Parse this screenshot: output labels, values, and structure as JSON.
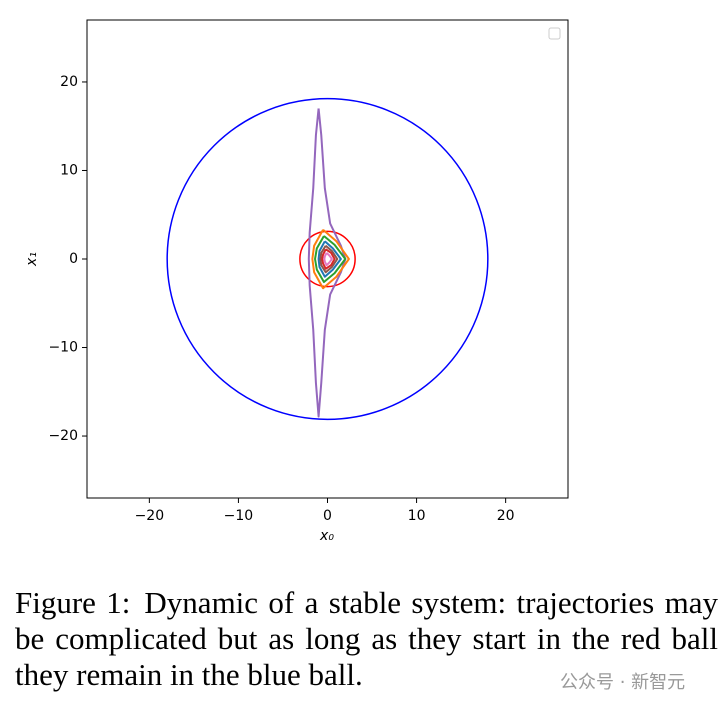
{
  "chart_data": {
    "type": "line",
    "x_label": "x₀",
    "y_label": "x₁",
    "xlim": [
      -27,
      27
    ],
    "ylim": [
      -27,
      27
    ],
    "xticks": [
      {
        "value": -20,
        "label": "−20"
      },
      {
        "value": -10,
        "label": "−10"
      },
      0,
      10,
      20
    ],
    "yticks": [
      {
        "value": -20,
        "label": "−20"
      },
      {
        "value": -10,
        "label": "−10"
      },
      0,
      10,
      20
    ],
    "legend": "upper right",
    "balls": [
      {
        "color": "#0000ff",
        "cx": 0,
        "cy": 0,
        "r": 18
      },
      {
        "color": "#ff0000",
        "cx": 0,
        "cy": 0,
        "r": 3.1
      }
    ],
    "series": [
      {
        "color": "#9467bd",
        "x": [
          -1,
          -0.7,
          -0.3,
          0.3,
          1.5,
          2,
          1.5,
          0.3,
          -0.3,
          -0.7,
          -1,
          -1.3,
          -1.6,
          -2,
          -2.1,
          -2,
          -1.6,
          -1.3,
          -1
        ],
        "y": [
          17,
          14,
          8,
          4,
          1.5,
          0,
          -1.5,
          -4,
          -8,
          -14,
          -17.8,
          -14,
          -8,
          -3,
          0,
          3,
          8,
          14,
          17
        ]
      },
      {
        "color": "#ff7f0e",
        "x": [
          -0.5,
          1,
          2.4,
          1,
          -0.5,
          -1.5,
          -1.7,
          -1.5,
          -0.5
        ],
        "y": [
          3.3,
          2,
          0,
          -2,
          -3.3,
          -1.5,
          0,
          1.5,
          3.3
        ]
      },
      {
        "color": "#2ca02c",
        "x": [
          -0.4,
          0.8,
          2,
          0.8,
          -0.4,
          -1.2,
          -1.4,
          -1.2,
          -0.4
        ],
        "y": [
          2.6,
          1.6,
          0,
          -1.6,
          -2.6,
          -1.2,
          0,
          1.2,
          2.6
        ]
      },
      {
        "color": "#1f77b4",
        "x": [
          -0.3,
          0.6,
          1.5,
          0.6,
          -0.3,
          -0.9,
          -1,
          -0.9,
          -0.3
        ],
        "y": [
          2,
          1.2,
          0,
          -1.2,
          -2,
          -0.9,
          0,
          0.9,
          2
        ]
      },
      {
        "color": "#8c564b",
        "x": [
          -0.2,
          0.5,
          1.1,
          0.5,
          -0.2,
          -0.7,
          -0.8,
          -0.7,
          -0.2
        ],
        "y": [
          1.5,
          0.9,
          0,
          -0.9,
          -1.5,
          -0.7,
          0,
          0.7,
          1.5
        ]
      },
      {
        "color": "#d62728",
        "x": [
          -0.2,
          0.4,
          0.8,
          0.4,
          -0.2,
          -0.5,
          -0.6,
          -0.5,
          -0.2
        ],
        "y": [
          1.1,
          0.7,
          0,
          -0.7,
          -1.1,
          -0.5,
          0,
          0.5,
          1.1
        ]
      },
      {
        "color": "#e377c2",
        "x": [
          -0.1,
          0.2,
          0.5,
          0.2,
          -0.1,
          -0.3,
          -0.35,
          -0.3,
          -0.1
        ],
        "y": [
          0.7,
          0.4,
          0,
          -0.4,
          -0.7,
          -0.3,
          0,
          0.3,
          0.7
        ]
      }
    ]
  },
  "caption": {
    "label": "Figure 1:",
    "text": "Dynamic of a stable system: trajectories may be complicated but as long as they start in the red ball they remain in the blue ball."
  },
  "watermark": "公众号 · 新智元"
}
